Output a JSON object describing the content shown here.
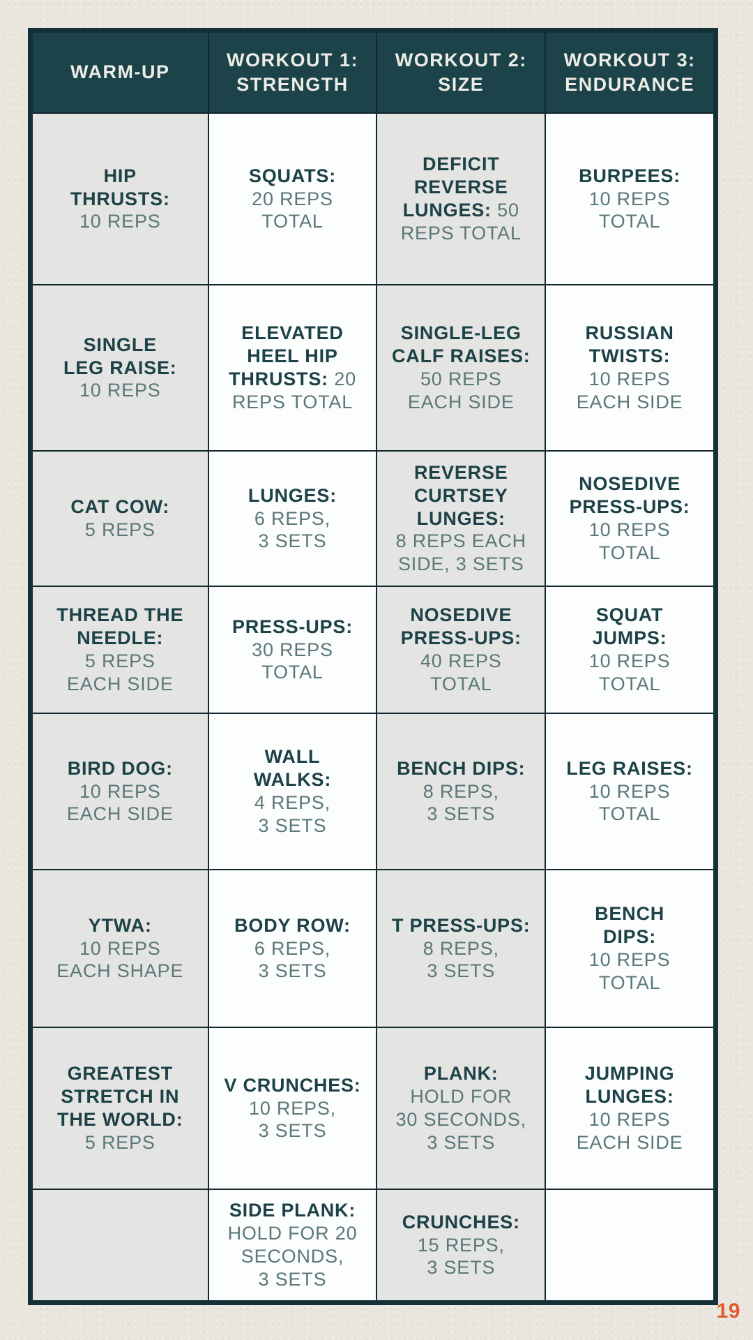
{
  "page": {
    "number": "19"
  },
  "colors": {
    "page_background": "#eae6de",
    "header_background": "#1c4349",
    "header_text": "#edece5",
    "exercise_name_text": "#1c4147",
    "exercise_detail_text": "#5a7779",
    "cell_gray": "#e4e4e2",
    "cell_white": "#fcfdfd",
    "grid_line": "#10282d",
    "outer_border": "#133137",
    "page_number_text": "#e2592e"
  },
  "table": {
    "headers": [
      "WARM-UP",
      "WORKOUT 1:\nSTRENGTH",
      "WORKOUT 2:\nSIZE",
      "WORKOUT 3:\nENDURANCE"
    ],
    "rows": [
      [
        {
          "name": "HIP\nTHRUSTS:",
          "detail": "10 REPS"
        },
        {
          "name": "SQUATS:",
          "detail": "20 REPS\nTOTAL"
        },
        {
          "name": "DEFICIT\nREVERSE\nLUNGES:",
          "detail": "50\nREPS TOTAL",
          "inline": true
        },
        {
          "name": "BURPEES:",
          "detail": "10 REPS\nTOTAL"
        }
      ],
      [
        {
          "name": "SINGLE\nLEG RAISE:",
          "detail": "10 REPS"
        },
        {
          "name": "ELEVATED\nHEEL HIP\nTHRUSTS:",
          "detail": "20\nREPS TOTAL",
          "inline": true
        },
        {
          "name": "SINGLE-LEG\nCALF RAISES:",
          "detail": "50 REPS\nEACH SIDE"
        },
        {
          "name": "RUSSIAN\nTWISTS:",
          "detail": "10 REPS\nEACH SIDE"
        }
      ],
      [
        {
          "name": "CAT COW:",
          "detail": "5 REPS"
        },
        {
          "name": "LUNGES:",
          "detail": "6 REPS,\n3 SETS"
        },
        {
          "name": "REVERSE\nCURTSEY\nLUNGES:",
          "detail": "8 REPS EACH\nSIDE, 3 SETS"
        },
        {
          "name": "NOSEDIVE\nPRESS-UPS:",
          "detail": "10 REPS\nTOTAL"
        }
      ],
      [
        {
          "name": "THREAD THE\nNEEDLE:",
          "detail": "5 REPS\nEACH SIDE"
        },
        {
          "name": "PRESS-UPS:",
          "detail": "30 REPS\nTOTAL"
        },
        {
          "name": "NOSEDIVE\nPRESS-UPS:",
          "detail": "40 REPS\nTOTAL"
        },
        {
          "name": "SQUAT\nJUMPS:",
          "detail": "10 REPS\nTOTAL"
        }
      ],
      [
        {
          "name": "BIRD DOG:",
          "detail": "10 REPS\nEACH SIDE"
        },
        {
          "name": "WALL\nWALKS:",
          "detail": "4 REPS,\n3 SETS"
        },
        {
          "name": "BENCH DIPS:",
          "detail": "8 REPS,\n3 SETS"
        },
        {
          "name": "LEG RAISES:",
          "detail": "10 REPS\nTOTAL"
        }
      ],
      [
        {
          "name": "YTWA:",
          "detail": "10 REPS\nEACH SHAPE"
        },
        {
          "name": "BODY ROW:",
          "detail": "6 REPS,\n3 SETS"
        },
        {
          "name": "T PRESS-UPS:",
          "detail": "8 REPS,\n3 SETS"
        },
        {
          "name": "BENCH\nDIPS:",
          "detail": "10 REPS\nTOTAL"
        }
      ],
      [
        {
          "name": "GREATEST\nSTRETCH IN\nTHE WORLD:",
          "detail": "5 REPS"
        },
        {
          "name": "V CRUNCHES:",
          "detail": "10 REPS,\n3 SETS"
        },
        {
          "name": "PLANK:",
          "detail": "HOLD FOR\n30 SECONDS,\n3 SETS"
        },
        {
          "name": "JUMPING\nLUNGES:",
          "detail": "10 REPS\nEACH SIDE"
        }
      ],
      [
        null,
        {
          "name": "SIDE PLANK:",
          "detail": "HOLD FOR 20\nSECONDS,\n3 SETS"
        },
        {
          "name": "CRUNCHES:",
          "detail": "15 REPS,\n3 SETS"
        },
        null
      ]
    ]
  }
}
